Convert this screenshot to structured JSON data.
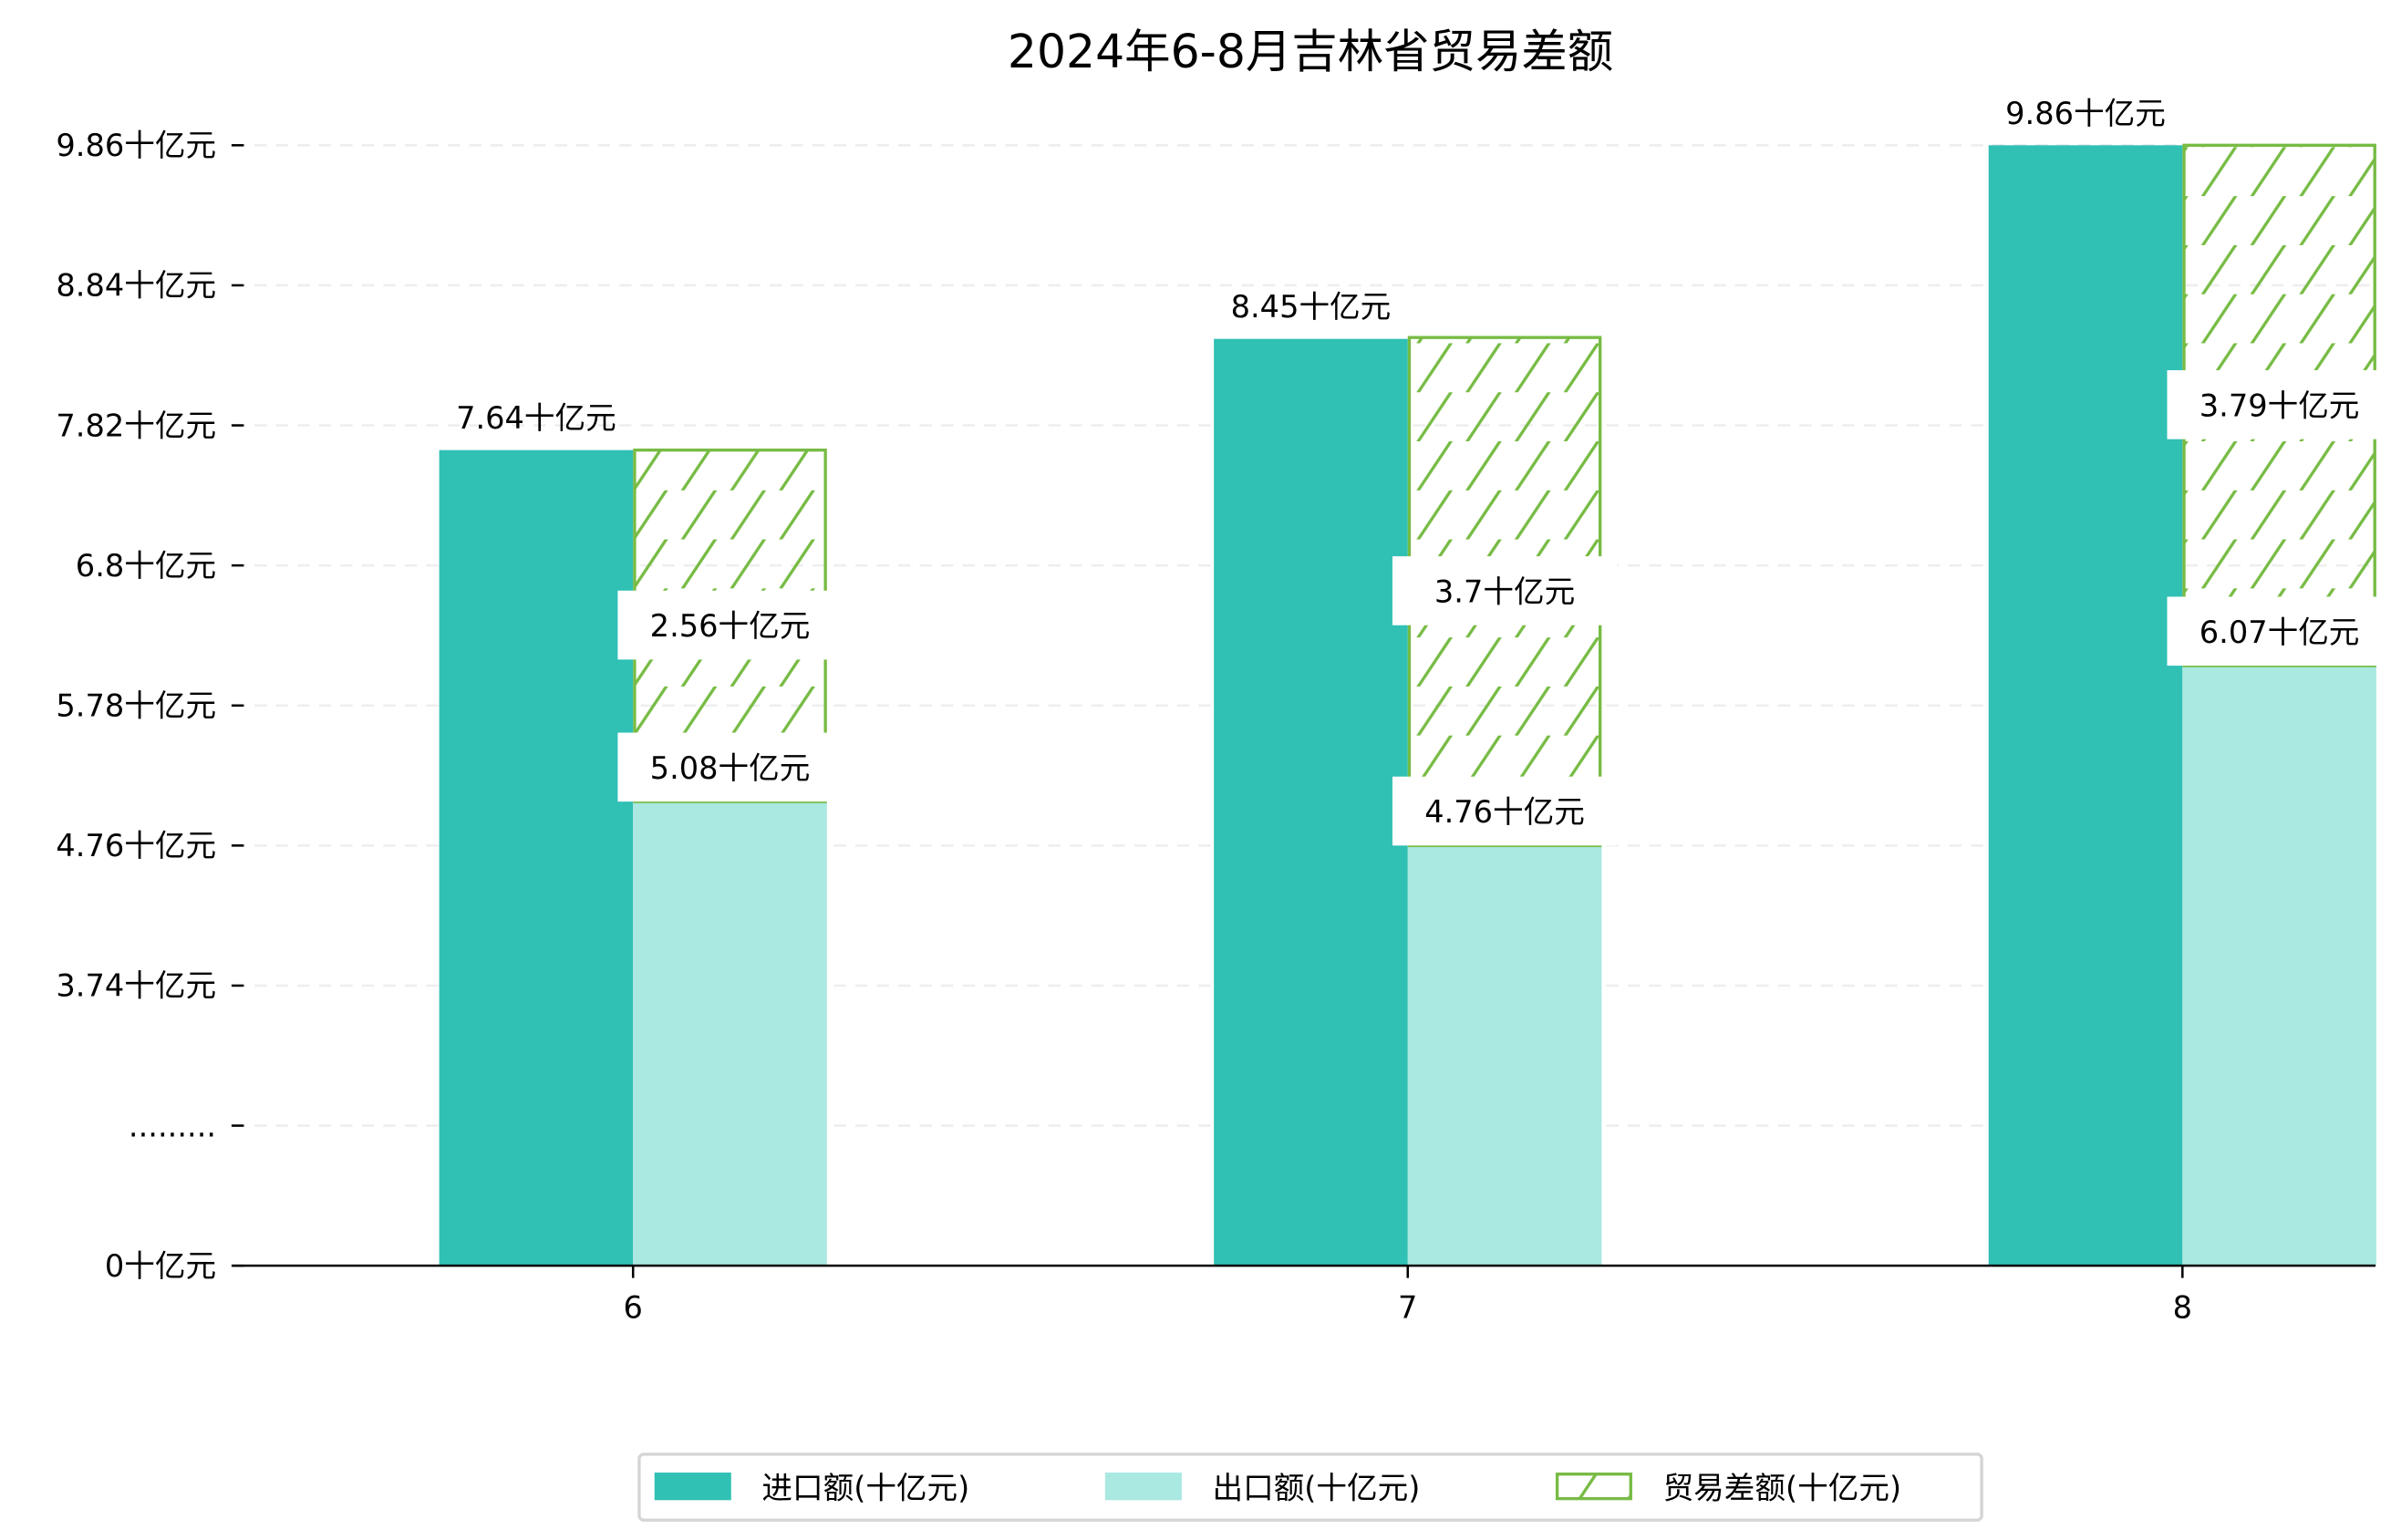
{
  "chart_data": {
    "type": "bar",
    "title": "2024年6-8月吉林省贸易差额",
    "xlabel": "",
    "ylabel": "",
    "categories": [
      "6",
      "7",
      "8"
    ],
    "y_tick_labels": [
      "0十亿元",
      ".........",
      "3.74十亿元",
      "4.76十亿元",
      "5.78十亿元",
      "6.8十亿元",
      "7.82十亿元",
      "8.84十亿元",
      "9.86十亿元"
    ],
    "y_tick_values": [
      0,
      2.72,
      3.74,
      4.76,
      5.78,
      6.8,
      7.82,
      8.84,
      9.86
    ],
    "axis_break": true,
    "grid": "horizontal-dashed",
    "legend_position": "bottom-center",
    "series": [
      {
        "name": "进口额(十亿元)",
        "values": [
          7.64,
          8.45,
          9.86
        ],
        "labels": [
          "7.64十亿元",
          "8.45十亿元",
          "9.86十亿元"
        ],
        "color": "#30C0B4"
      },
      {
        "name": "出口额(十亿元)",
        "values": [
          5.08,
          4.76,
          6.07
        ],
        "labels": [
          "5.08十亿元",
          "4.76十亿元",
          "6.07十亿元"
        ],
        "color": "#AAE8E2"
      },
      {
        "name": "贸易差额(十亿元)",
        "values": [
          2.56,
          3.7,
          3.79
        ],
        "labels": [
          "2.56十亿元",
          "3.7十亿元",
          "3.79十亿元"
        ],
        "color": "#77BB44",
        "stacked_on": "出口额(十亿元)",
        "hatch": "diagonal"
      }
    ]
  }
}
